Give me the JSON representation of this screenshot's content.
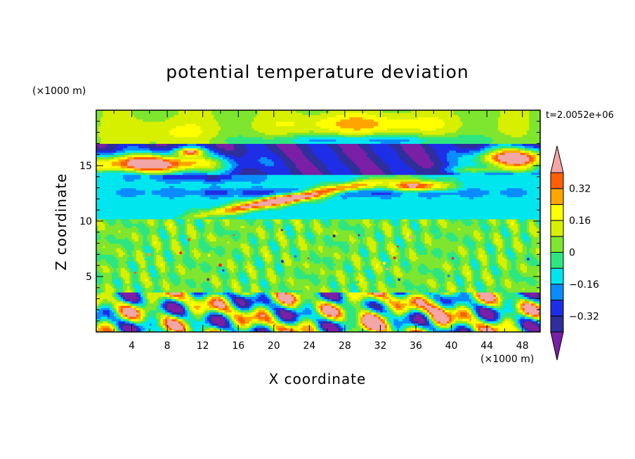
{
  "chart_data": {
    "type": "heatmap",
    "title": "potential temperature deviation",
    "xlabel": "X coordinate",
    "ylabel": "Z coordinate",
    "x_unit": "(×1000 m)",
    "y_unit": "(×1000 m)",
    "time_label": "t=2.0052e+06",
    "xlim": [
      0,
      50
    ],
    "ylim": [
      0,
      20
    ],
    "x_ticks": [
      4,
      8,
      12,
      16,
      20,
      24,
      28,
      32,
      36,
      40,
      44,
      48
    ],
    "y_ticks": [
      5,
      10,
      15
    ],
    "colorbar": {
      "levels": [
        -0.4,
        -0.32,
        -0.24,
        -0.16,
        -0.08,
        0,
        0.08,
        0.16,
        0.24,
        0.32,
        0.4
      ],
      "labeled_levels": [
        0.32,
        0.16,
        0,
        -0.16,
        -0.32
      ],
      "colors": [
        "#7a1fa6",
        "#2e2e9c",
        "#1e2ee6",
        "#0a8cff",
        "#00e6ee",
        "#2ee680",
        "#7ee62e",
        "#d6f000",
        "#ffff00",
        "#ffa500",
        "#ff5f00",
        "#ff1e1e",
        "#f2a6a6"
      ],
      "extend": "both"
    },
    "layers": [
      {
        "z": [
          0,
          3.5
        ],
        "pattern": "convective cells, values -0.4 to 0.4"
      },
      {
        "z": [
          3.5,
          10
        ],
        "value": 0.02
      },
      {
        "z": [
          10,
          14
        ],
        "value": -0.12
      },
      {
        "z": [
          14,
          17
        ],
        "value": -0.38
      },
      {
        "z": [
          17,
          20
        ],
        "value": 0.1
      }
    ]
  }
}
